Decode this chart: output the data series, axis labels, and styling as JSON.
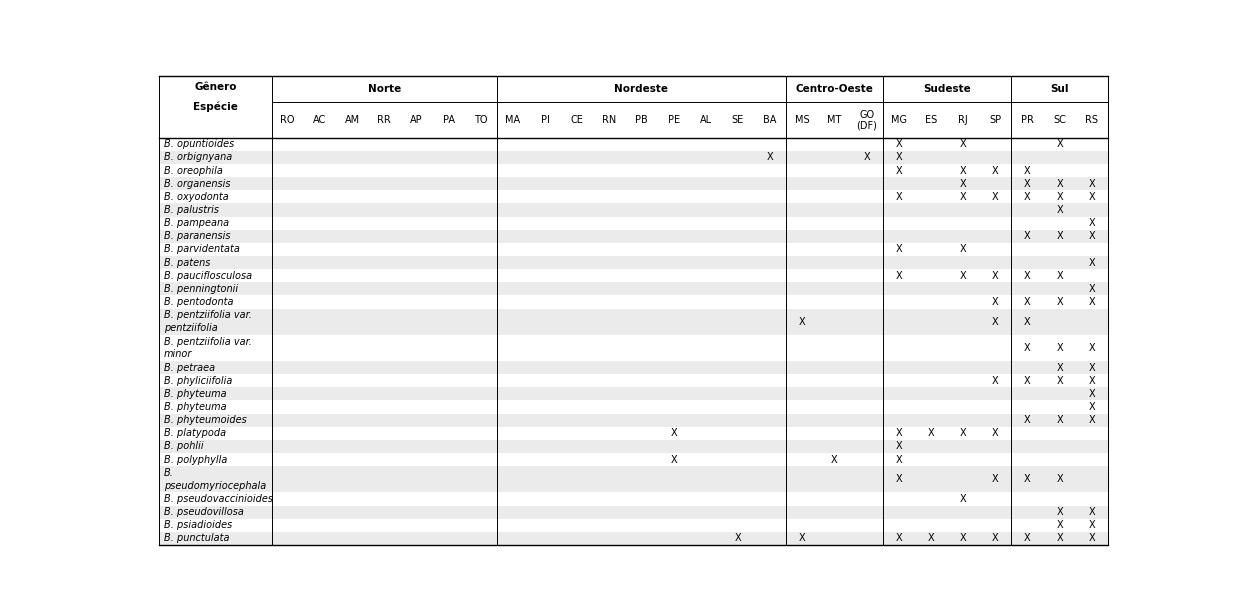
{
  "col_order": [
    "RO",
    "AC",
    "AM",
    "RR",
    "AP",
    "PA",
    "TO",
    "MA",
    "PI",
    "CE",
    "RN",
    "PB",
    "PE",
    "AL",
    "SE",
    "BA",
    "MS",
    "MT",
    "GO\n(DF)",
    "MG",
    "ES",
    "RJ",
    "SP",
    "PR",
    "SC",
    "RS"
  ],
  "region_spans": [
    [
      "Norte",
      0,
      6
    ],
    [
      "Nordeste",
      7,
      15
    ],
    [
      "Centro-Oeste",
      16,
      18
    ],
    [
      "Sudeste",
      19,
      22
    ],
    [
      "Sul",
      23,
      25
    ]
  ],
  "display_names": [
    "B. opuntioides",
    "B. orbignyana",
    "B. oreophila",
    "B. organensis",
    "B. oxyodonta",
    "B. palustris",
    "B. pampeana",
    "B. paranensis",
    "B. parvidentata",
    "B. patens",
    "B. pauciflosculosa",
    "B. penningtonii",
    "B. pentodonta",
    "B. pentziifolia var.\npentziifolia",
    "B. pentziifolia var.\nminor",
    "B. petraea",
    "B. phyliciifolia",
    "B. phyteuma",
    "B. phyteuma",
    "B. phyteumoides",
    "B. platypoda",
    "B. pohlii",
    "B. polyphylla",
    "B.\npseudomyriocephala",
    "B. pseudovaccinioides",
    "B. pseudovillosa",
    "B. psiadioides",
    "B. punctulata"
  ],
  "x_data": [
    {
      "MG": "X",
      "RJ": "X",
      "SC": "X"
    },
    {
      "BA": "X",
      "GO\n(DF)": "X",
      "MG": "X"
    },
    {
      "MG": "X",
      "RJ": "X",
      "SP": "X",
      "PR": "X"
    },
    {
      "RJ": "X",
      "PR": "X",
      "SC": "X",
      "RS": "X"
    },
    {
      "MG": "X",
      "RJ": "X",
      "SP": "X",
      "PR": "X",
      "SC": "X",
      "RS": "X"
    },
    {
      "SC": "X"
    },
    {
      "RS": "X"
    },
    {
      "PR": "X",
      "SC": "X",
      "RS": "X"
    },
    {
      "MG": "X",
      "RJ": "X"
    },
    {
      "RS": "X"
    },
    {
      "MG": "X",
      "RJ": "X",
      "SP": "X",
      "PR": "X",
      "SC": "X"
    },
    {
      "RS": "X"
    },
    {
      "SP": "X",
      "PR": "X",
      "SC": "X",
      "RS": "X"
    },
    {
      "MS": "X",
      "SP": "X",
      "PR": "X"
    },
    {
      "PR": "X",
      "SC": "X",
      "RS": "X"
    },
    {
      "SC": "X",
      "RS": "X"
    },
    {
      "SP": "X",
      "PR": "X",
      "SC": "X",
      "RS": "X"
    },
    {
      "RS": "X"
    },
    {
      "RS": "X"
    },
    {
      "PR": "X",
      "SC": "X",
      "RS": "X"
    },
    {
      "PE": "X",
      "MG": "X",
      "ES": "X",
      "RJ": "X",
      "SP": "X"
    },
    {
      "MG": "X"
    },
    {
      "PE": "X",
      "MT": "X",
      "MG": "X"
    },
    {
      "MG": "X",
      "SP": "X",
      "PR": "X",
      "SC": "X"
    },
    {
      "RJ": "X"
    },
    {
      "SC": "X",
      "RS": "X"
    },
    {
      "SC": "X",
      "RS": "X"
    },
    {
      "SE": "X",
      "MS": "X",
      "MG": "X",
      "ES": "X",
      "RJ": "X",
      "SP": "X",
      "PR": "X",
      "SC": "X",
      "RS": "X"
    }
  ],
  "bg_light": "#ebebeb",
  "bg_white": "#ffffff",
  "font_size_region": 7.5,
  "font_size_state": 7.0,
  "font_size_species": 7.0,
  "font_size_x": 7.0
}
